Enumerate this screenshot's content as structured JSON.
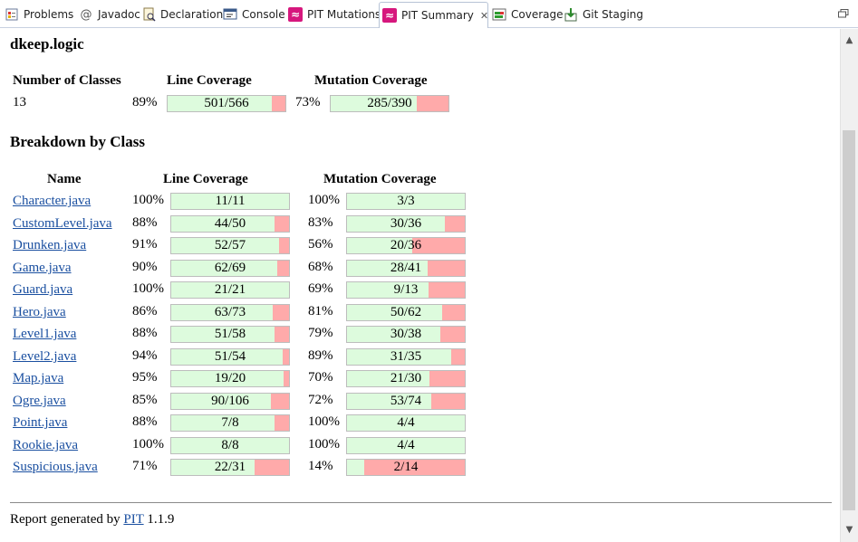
{
  "tabs": [
    {
      "label": "Problems",
      "icon": "problems-icon"
    },
    {
      "label": "Javadoc",
      "icon": "javadoc-icon"
    },
    {
      "label": "Declaration",
      "icon": "declaration-icon"
    },
    {
      "label": "Console",
      "icon": "console-icon"
    },
    {
      "label": "PIT Mutations",
      "icon": "pit-icon"
    },
    {
      "label": "PIT Summary",
      "icon": "pit-icon",
      "active": true
    },
    {
      "label": "Coverage",
      "icon": "coverage-icon"
    },
    {
      "label": "Git Staging",
      "icon": "git-staging-icon"
    }
  ],
  "report": {
    "package": "dkeep.logic",
    "summary_headers": {
      "classes": "Number of Classes",
      "line": "Line Coverage",
      "mutation": "Mutation Coverage"
    },
    "summary": {
      "classes": "13",
      "line_pct": "89%",
      "line_ratio": "501/566",
      "line_fraction": 0.885,
      "mutation_pct": "73%",
      "mutation_ratio": "285/390",
      "mutation_fraction": 0.731
    },
    "breakdown_title": "Breakdown by Class",
    "breakdown_headers": {
      "name": "Name",
      "line": "Line Coverage",
      "mutation": "Mutation Coverage"
    },
    "rows": [
      {
        "name": "Character.java",
        "line_pct": "100%",
        "line_ratio": "11/11",
        "line_fraction": 1.0,
        "mut_pct": "100%",
        "mut_ratio": "3/3",
        "mut_fraction": 1.0
      },
      {
        "name": "CustomLevel.java",
        "line_pct": "88%",
        "line_ratio": "44/50",
        "line_fraction": 0.88,
        "mut_pct": "83%",
        "mut_ratio": "30/36",
        "mut_fraction": 0.833
      },
      {
        "name": "Drunken.java",
        "line_pct": "91%",
        "line_ratio": "52/57",
        "line_fraction": 0.912,
        "mut_pct": "56%",
        "mut_ratio": "20/36",
        "mut_fraction": 0.556
      },
      {
        "name": "Game.java",
        "line_pct": "90%",
        "line_ratio": "62/69",
        "line_fraction": 0.899,
        "mut_pct": "68%",
        "mut_ratio": "28/41",
        "mut_fraction": 0.683
      },
      {
        "name": "Guard.java",
        "line_pct": "100%",
        "line_ratio": "21/21",
        "line_fraction": 1.0,
        "mut_pct": "69%",
        "mut_ratio": "9/13",
        "mut_fraction": 0.692
      },
      {
        "name": "Hero.java",
        "line_pct": "86%",
        "line_ratio": "63/73",
        "line_fraction": 0.863,
        "mut_pct": "81%",
        "mut_ratio": "50/62",
        "mut_fraction": 0.806
      },
      {
        "name": "Level1.java",
        "line_pct": "88%",
        "line_ratio": "51/58",
        "line_fraction": 0.879,
        "mut_pct": "79%",
        "mut_ratio": "30/38",
        "mut_fraction": 0.789
      },
      {
        "name": "Level2.java",
        "line_pct": "94%",
        "line_ratio": "51/54",
        "line_fraction": 0.944,
        "mut_pct": "89%",
        "mut_ratio": "31/35",
        "mut_fraction": 0.886
      },
      {
        "name": "Map.java",
        "line_pct": "95%",
        "line_ratio": "19/20",
        "line_fraction": 0.95,
        "mut_pct": "70%",
        "mut_ratio": "21/30",
        "mut_fraction": 0.7
      },
      {
        "name": "Ogre.java",
        "line_pct": "85%",
        "line_ratio": "90/106",
        "line_fraction": 0.849,
        "mut_pct": "72%",
        "mut_ratio": "53/74",
        "mut_fraction": 0.716
      },
      {
        "name": "Point.java",
        "line_pct": "88%",
        "line_ratio": "7/8",
        "line_fraction": 0.875,
        "mut_pct": "100%",
        "mut_ratio": "4/4",
        "mut_fraction": 1.0
      },
      {
        "name": "Rookie.java",
        "line_pct": "100%",
        "line_ratio": "8/8",
        "line_fraction": 1.0,
        "mut_pct": "100%",
        "mut_ratio": "4/4",
        "mut_fraction": 1.0
      },
      {
        "name": "Suspicious.java",
        "line_pct": "71%",
        "line_ratio": "22/31",
        "line_fraction": 0.71,
        "mut_pct": "14%",
        "mut_ratio": "2/14",
        "mut_fraction": 0.143
      }
    ],
    "footer": {
      "prefix": "Report generated by ",
      "link": "PIT",
      "version": " 1.1.9"
    }
  },
  "colors": {
    "covered": "#ddfbdd",
    "uncovered": "#ffaaaa",
    "link": "#1a4fa0",
    "pit_icon": "#d6177d"
  }
}
